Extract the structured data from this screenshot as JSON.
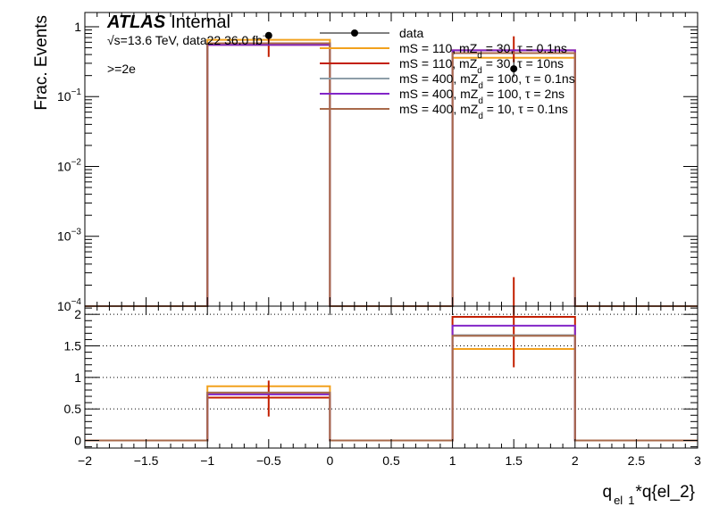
{
  "chart_data": {
    "type": "bar",
    "x_title_main": "q",
    "x_title_sub1": "el",
    "x_title_sub2": "1",
    "x_title_rest": "*q{el_2}",
    "xlim": [
      -2,
      3
    ],
    "x_ticks": [
      -2,
      -1.5,
      -1,
      -0.5,
      0,
      0.5,
      1,
      1.5,
      2,
      2.5,
      3
    ],
    "x_tick_labels": [
      "−2",
      "−1.5",
      "−1",
      "−0.5",
      "0",
      "0.5",
      "1",
      "1.5",
      "2",
      "2.5",
      "3"
    ],
    "bin_edges": [
      -2,
      -1,
      0,
      1,
      2,
      3
    ],
    "top": {
      "ylabel": "Frac. Events",
      "scale": "log",
      "ylim": [
        0.0001,
        1.6
      ],
      "y_ticks": [
        {
          "value": 1,
          "label": "1"
        },
        {
          "value": 0.1,
          "label": "10",
          "exp": "−1"
        },
        {
          "value": 0.01,
          "label": "10",
          "exp": "−2"
        },
        {
          "value": 0.001,
          "label": "10",
          "exp": "−3"
        },
        {
          "value": 0.0001,
          "label": "10",
          "exp": "−4"
        }
      ],
      "data_points": {
        "x": [
          -0.5,
          1.5
        ],
        "y": [
          0.75,
          0.25
        ],
        "err_low": [
          0.19,
          0.06
        ],
        "err_high": [
          0.08,
          0.09
        ]
      },
      "series": [
        {
          "name": "mS = 110, mZd = 30, τ = 0.1ns",
          "color": "#f2a11d",
          "values": [
            0,
            0.65,
            0,
            0.36,
            0
          ]
        },
        {
          "name": "mS = 110, mZd = 30, τ = 10ns",
          "color": "#c31f00",
          "values": [
            0,
            0.55,
            0,
            0.46,
            0
          ],
          "err_low": [
            0,
            0.18,
            0,
            0.15,
            0
          ],
          "err_high": [
            0,
            0.16,
            0,
            0.27,
            0
          ]
        },
        {
          "name": "mS = 400, mZd = 100, τ = 0.1ns",
          "color": "#8e9ea8",
          "values": [
            0,
            0.58,
            0,
            0.42,
            0
          ]
        },
        {
          "name": "mS = 400, mZd = 100, τ = 2ns",
          "color": "#8225c8",
          "values": [
            0,
            0.55,
            0,
            0.46,
            0
          ]
        },
        {
          "name": "mS = 400, mZd = 10, τ = 0.1ns",
          "color": "#a8694a",
          "values": [
            0,
            0.58,
            0,
            0.42,
            0
          ]
        }
      ]
    },
    "ratio": {
      "ylim": [
        -0.12,
        2.13
      ],
      "y_ticks": [
        0,
        0.5,
        1,
        1.5,
        2
      ],
      "y_tick_labels": [
        "0",
        "0.5",
        "1",
        "1.5",
        "2"
      ],
      "grid_lines": [
        0.5,
        1,
        1.5,
        2
      ],
      "series": [
        {
          "color": "#f2a11d",
          "values": [
            0,
            0.86,
            0,
            1.45,
            0
          ]
        },
        {
          "color": "#c31f00",
          "values": [
            0,
            0.68,
            0,
            1.96,
            0
          ],
          "err_low": [
            0,
            0.3,
            0,
            0.8,
            0
          ],
          "err_high": [
            0,
            0.27,
            0,
            0.63,
            0
          ]
        },
        {
          "color": "#8e9ea8",
          "values": [
            0,
            0.76,
            0,
            1.67,
            0
          ]
        },
        {
          "color": "#8225c8",
          "values": [
            0,
            0.73,
            0,
            1.82,
            0
          ]
        },
        {
          "color": "#a8694a",
          "values": [
            0,
            0.76,
            0,
            1.66,
            0
          ]
        }
      ]
    }
  },
  "annotations": {
    "atlas": "ATLAS",
    "internal": "Internal",
    "sqrt": "√s=13.6 TeV, data22 36.0 fb",
    "sqrt_exp": "−1",
    "selection": ">=2e"
  },
  "legend": {
    "data_label": "data",
    "entries": [
      {
        "main": "mS = 110, mZ",
        "sub": "d",
        "rest": " = 30, τ = 0.1ns",
        "color": "#f2a11d"
      },
      {
        "main": "mS = 110, mZ",
        "sub": "d",
        "rest": " = 30, τ = 10ns",
        "color": "#c31f00"
      },
      {
        "main": "mS = 400, mZ",
        "sub": "d",
        "rest": " = 100, τ = 0.1ns",
        "color": "#8e9ea8"
      },
      {
        "main": "mS = 400, mZ",
        "sub": "d",
        "rest": " = 100, τ = 2ns",
        "color": "#8225c8"
      },
      {
        "main": "mS = 400, mZ",
        "sub": "d",
        "rest": " = 10, τ = 0.1ns",
        "color": "#a8694a"
      }
    ]
  }
}
